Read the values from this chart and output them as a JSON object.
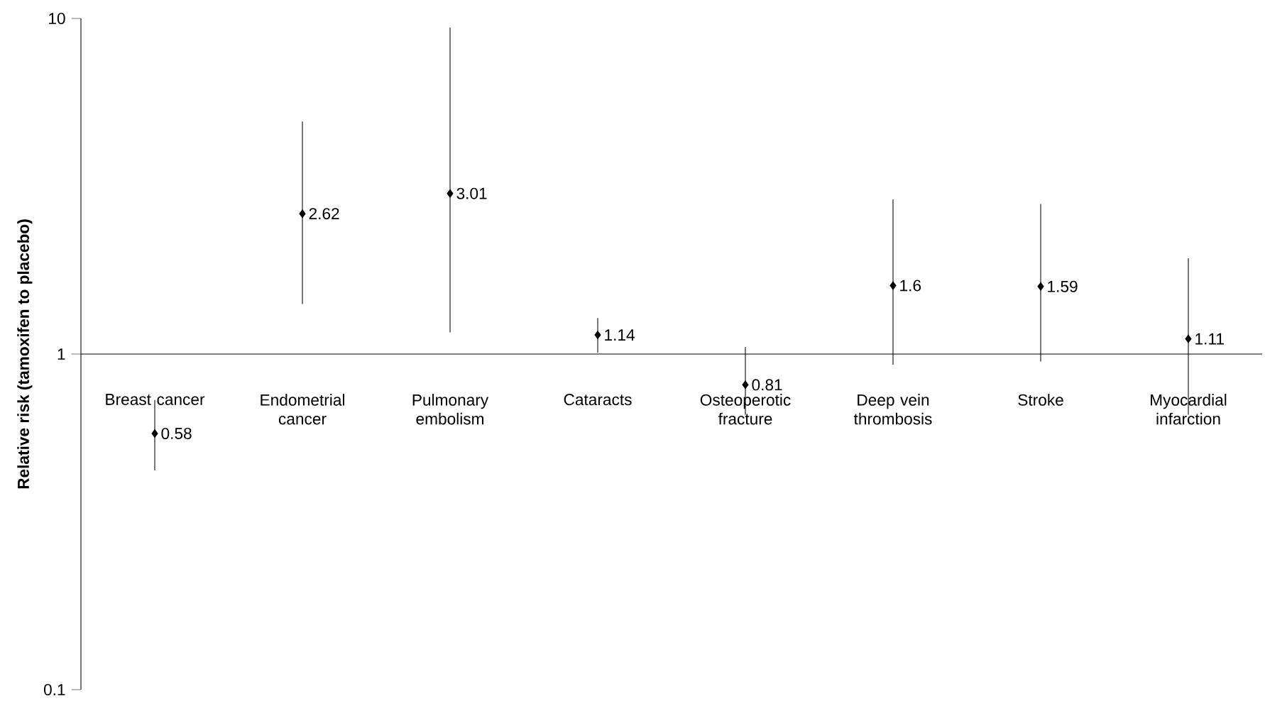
{
  "chart_data": {
    "type": "scatter",
    "ylabel": "Relative risk (tamoxifen to placebo)",
    "categories": [
      "Breast cancer",
      "Endometrial cancer",
      "Pulmonary embolism",
      "Cataracts",
      "Osteoperotic fracture",
      "Deep vein thrombosis",
      "Stroke",
      "Myocardial infarction"
    ],
    "values": [
      0.58,
      2.62,
      3.01,
      1.14,
      0.81,
      1.6,
      1.59,
      1.11
    ],
    "errors": [
      [
        0.45,
        0.73
      ],
      [
        1.41,
        4.93
      ],
      [
        1.16,
        9.4
      ],
      [
        1.01,
        1.28
      ],
      [
        0.66,
        1.05
      ],
      [
        0.93,
        2.89
      ],
      [
        0.95,
        2.8
      ],
      [
        0.66,
        1.93
      ]
    ],
    "color": "#000000",
    "marker": "diamond",
    "data_labels": true,
    "log": "y",
    "ylim": [
      0.1,
      10
    ],
    "yticks": [
      0.1,
      1,
      10
    ]
  }
}
